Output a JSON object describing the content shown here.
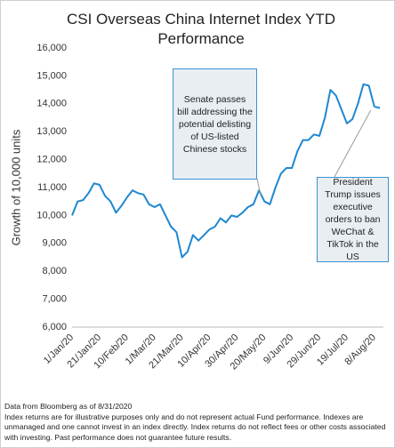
{
  "chart_data": {
    "type": "line",
    "title": "CSI Overseas China Internet Index YTD Performance",
    "y_label": "Growth of 10,000 units",
    "categories": [
      "1/Jan/20",
      null,
      null,
      null,
      null,
      "21/Jan/20",
      null,
      null,
      null,
      null,
      "10/Feb/20",
      null,
      null,
      null,
      null,
      "1/Mar/20",
      null,
      null,
      null,
      null,
      "21/Mar/20",
      null,
      null,
      null,
      null,
      "10/Apr/20",
      null,
      null,
      null,
      null,
      "30/Apr/20",
      null,
      null,
      null,
      null,
      "20/May/20",
      null,
      null,
      null,
      null,
      "9/Jun/20",
      null,
      null,
      null,
      null,
      "29/Jun/20",
      null,
      null,
      null,
      null,
      "19/Jul/20",
      null,
      null,
      null,
      null,
      "8/Aug/20",
      null
    ],
    "series": [
      {
        "name": "CSI Overseas China Internet Index",
        "color": "#1e88d0",
        "values": [
          10000,
          10500,
          10550,
          10800,
          11150,
          11100,
          10700,
          10500,
          10100,
          10350,
          10650,
          10900,
          10800,
          10750,
          10400,
          10300,
          10400,
          10000,
          9600,
          9400,
          8500,
          8700,
          9300,
          9100,
          9300,
          9500,
          9600,
          9900,
          9750,
          10000,
          9950,
          10100,
          10300,
          10400,
          10900,
          10500,
          10400,
          11000,
          11500,
          11700,
          11700,
          12300,
          12700,
          12700,
          12900,
          12850,
          13500,
          14500,
          14300,
          13800,
          13300,
          13450,
          14000,
          14700,
          14650,
          13900,
          13850
        ]
      }
    ],
    "ylim": [
      6000,
      16000
    ],
    "yticks": [
      {
        "value": 6000,
        "label": "6,000"
      },
      {
        "value": 7000,
        "label": "7,000"
      },
      {
        "value": 8000,
        "label": "8,000"
      },
      {
        "value": 9000,
        "label": "9,000"
      },
      {
        "value": 10000,
        "label": "10,000"
      },
      {
        "value": 11000,
        "label": "11,000"
      },
      {
        "value": 12000,
        "label": "12,000"
      },
      {
        "value": 13000,
        "label": "13,000"
      },
      {
        "value": 14000,
        "label": "14,000"
      },
      {
        "value": 15000,
        "label": "15,000"
      },
      {
        "value": 16000,
        "label": "16,000"
      }
    ],
    "grid": false,
    "annotations": [
      "Senate passes bill addressing the potential delisting of US-listed Chinese stocks",
      "President Trump issues executive orders to ban WeChat & TikTok in the US"
    ],
    "footnotes": [
      "Data from Bloomberg as of 8/31/2020",
      "Index returns are for illustrative purposes only and do not represent actual Fund performance. Indexes are unmanaged and one cannot invest in an index directly. Index returns do not reflect fees or other costs associated with investing. Past performance does not guarantee future results."
    ]
  }
}
